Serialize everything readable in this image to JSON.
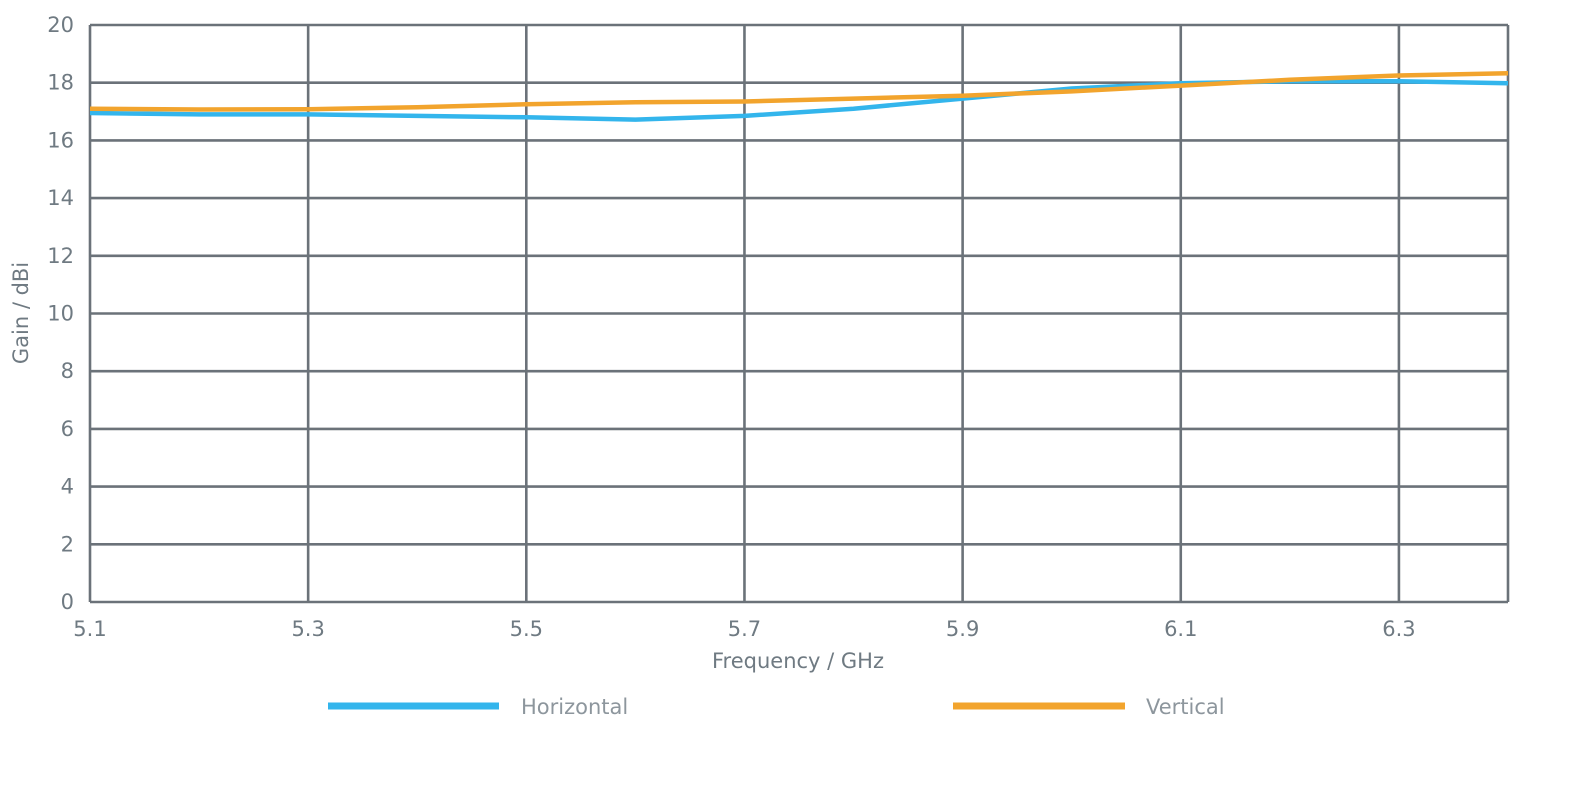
{
  "chart_data": {
    "type": "line",
    "title": "",
    "xlabel": "Frequency / GHz",
    "ylabel": "Gain / dBi",
    "xlim": [
      5.1,
      6.4
    ],
    "ylim": [
      0,
      20
    ],
    "x_ticks": [
      "5.1",
      "5.3",
      "5.5",
      "5.7",
      "5.9",
      "6.1",
      "6.3"
    ],
    "x_tick_values": [
      5.1,
      5.3,
      5.5,
      5.7,
      5.9,
      6.1,
      6.3
    ],
    "y_ticks": [
      "0",
      "2",
      "4",
      "6",
      "8",
      "10",
      "12",
      "14",
      "16",
      "18",
      "20"
    ],
    "y_tick_values": [
      0,
      2,
      4,
      6,
      8,
      10,
      12,
      14,
      16,
      18,
      20
    ],
    "grid": true,
    "legend_position": "bottom",
    "x": [
      5.1,
      5.2,
      5.3,
      5.4,
      5.5,
      5.6,
      5.7,
      5.8,
      5.9,
      6.0,
      6.1,
      6.2,
      6.3,
      6.4
    ],
    "series": [
      {
        "name": "Horizontal",
        "color": "#33b5ec",
        "values": [
          16.95,
          16.9,
          16.9,
          16.85,
          16.8,
          16.72,
          16.85,
          17.1,
          17.45,
          17.8,
          17.98,
          18.05,
          18.05,
          17.98
        ]
      },
      {
        "name": "Vertical",
        "color": "#f2a42d",
        "values": [
          17.1,
          17.07,
          17.08,
          17.15,
          17.25,
          17.32,
          17.35,
          17.45,
          17.55,
          17.7,
          17.9,
          18.1,
          18.25,
          18.33
        ]
      }
    ],
    "colors": {
      "grid": "#6b7279",
      "tick_text": "#6f7a82",
      "legend_text": "#8d969d"
    }
  }
}
